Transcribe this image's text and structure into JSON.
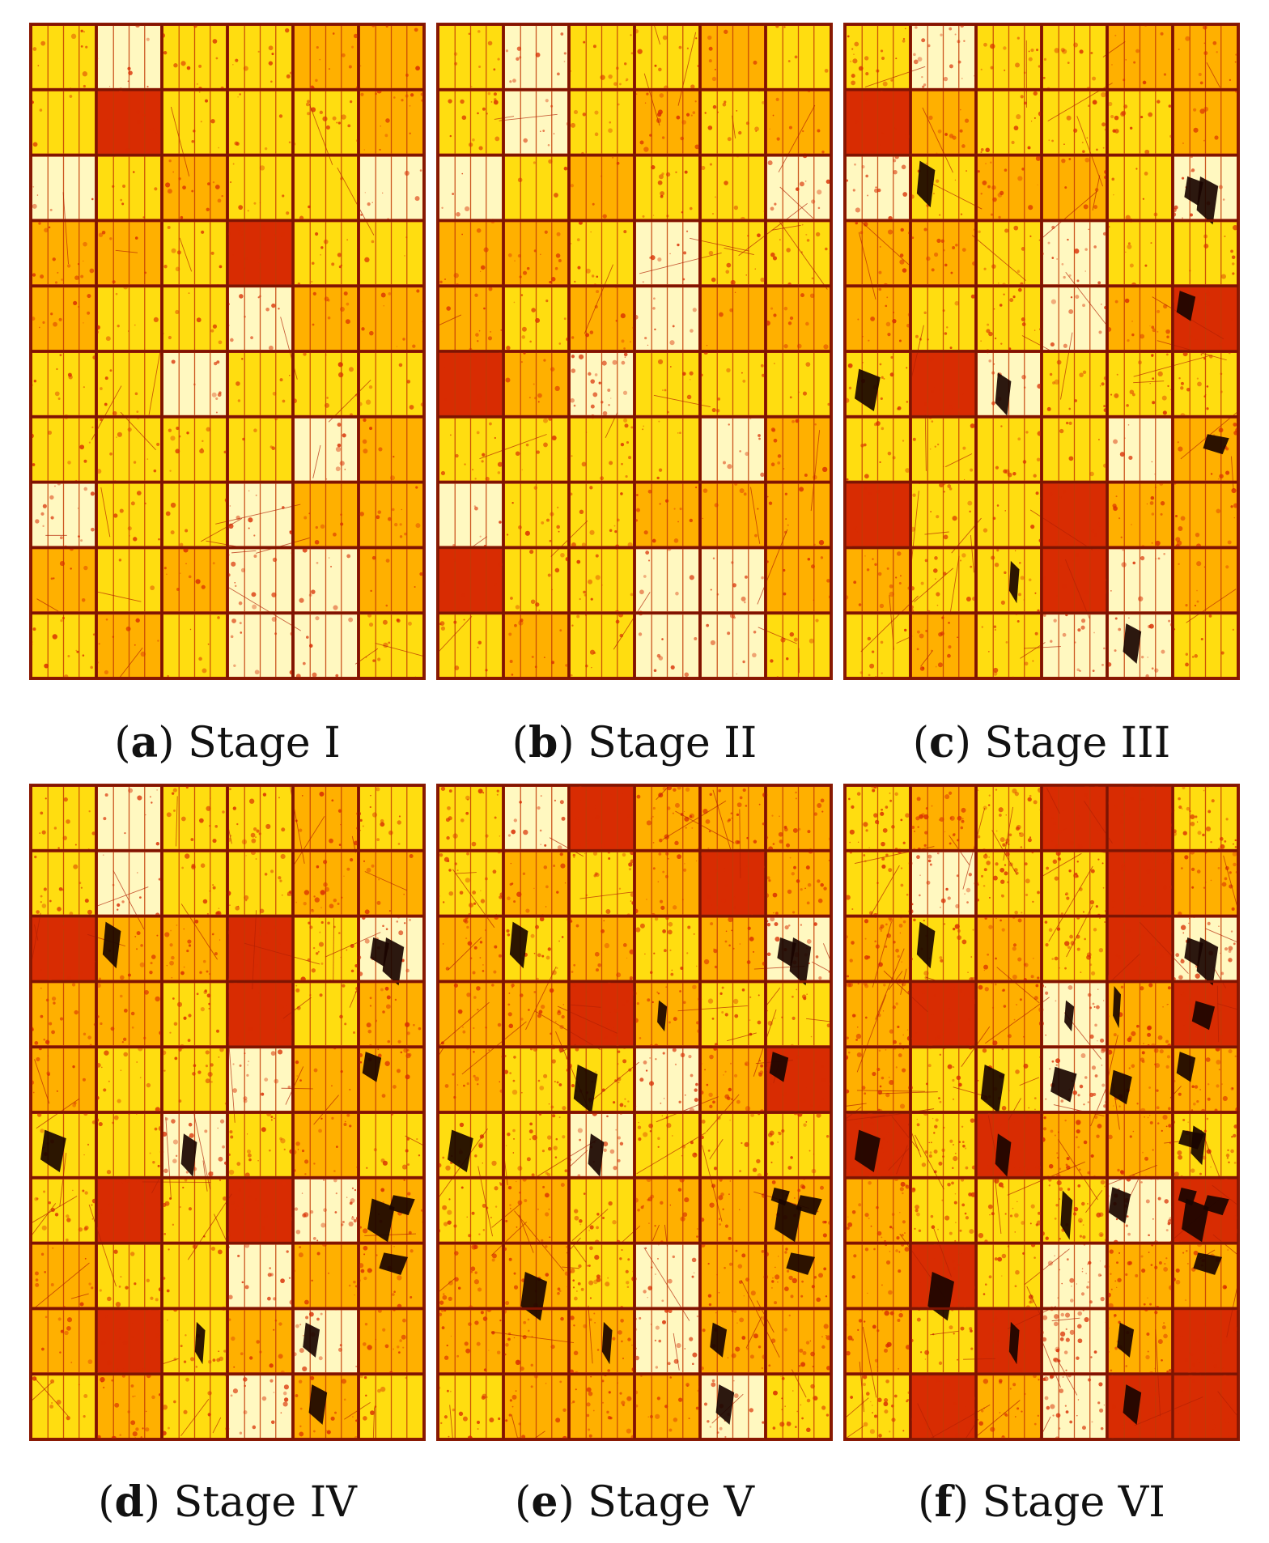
{
  "colors": {
    "cell_bright": "#fff8c0",
    "cell_yellow": "#ffdd10",
    "cell_orange": "#ffb000",
    "degraded_red": "#d82c02",
    "frame_red": "#a82006",
    "dark_defect": "#1a0400"
  },
  "panels": [
    {
      "letter": "a",
      "label": "Stage I",
      "degradation": 0.05,
      "dark_defects": 0
    },
    {
      "letter": "b",
      "label": "Stage II",
      "degradation": 0.1,
      "dark_defects": 0
    },
    {
      "letter": "c",
      "label": "Stage III",
      "degradation": 0.22,
      "dark_defects": 9
    },
    {
      "letter": "d",
      "label": "Stage IV",
      "degradation": 0.3,
      "dark_defects": 12
    },
    {
      "letter": "e",
      "label": "Stage V",
      "degradation": 0.5,
      "dark_defects": 16
    },
    {
      "letter": "f",
      "label": "Stage VI",
      "degradation": 0.72,
      "dark_defects": 24
    }
  ]
}
